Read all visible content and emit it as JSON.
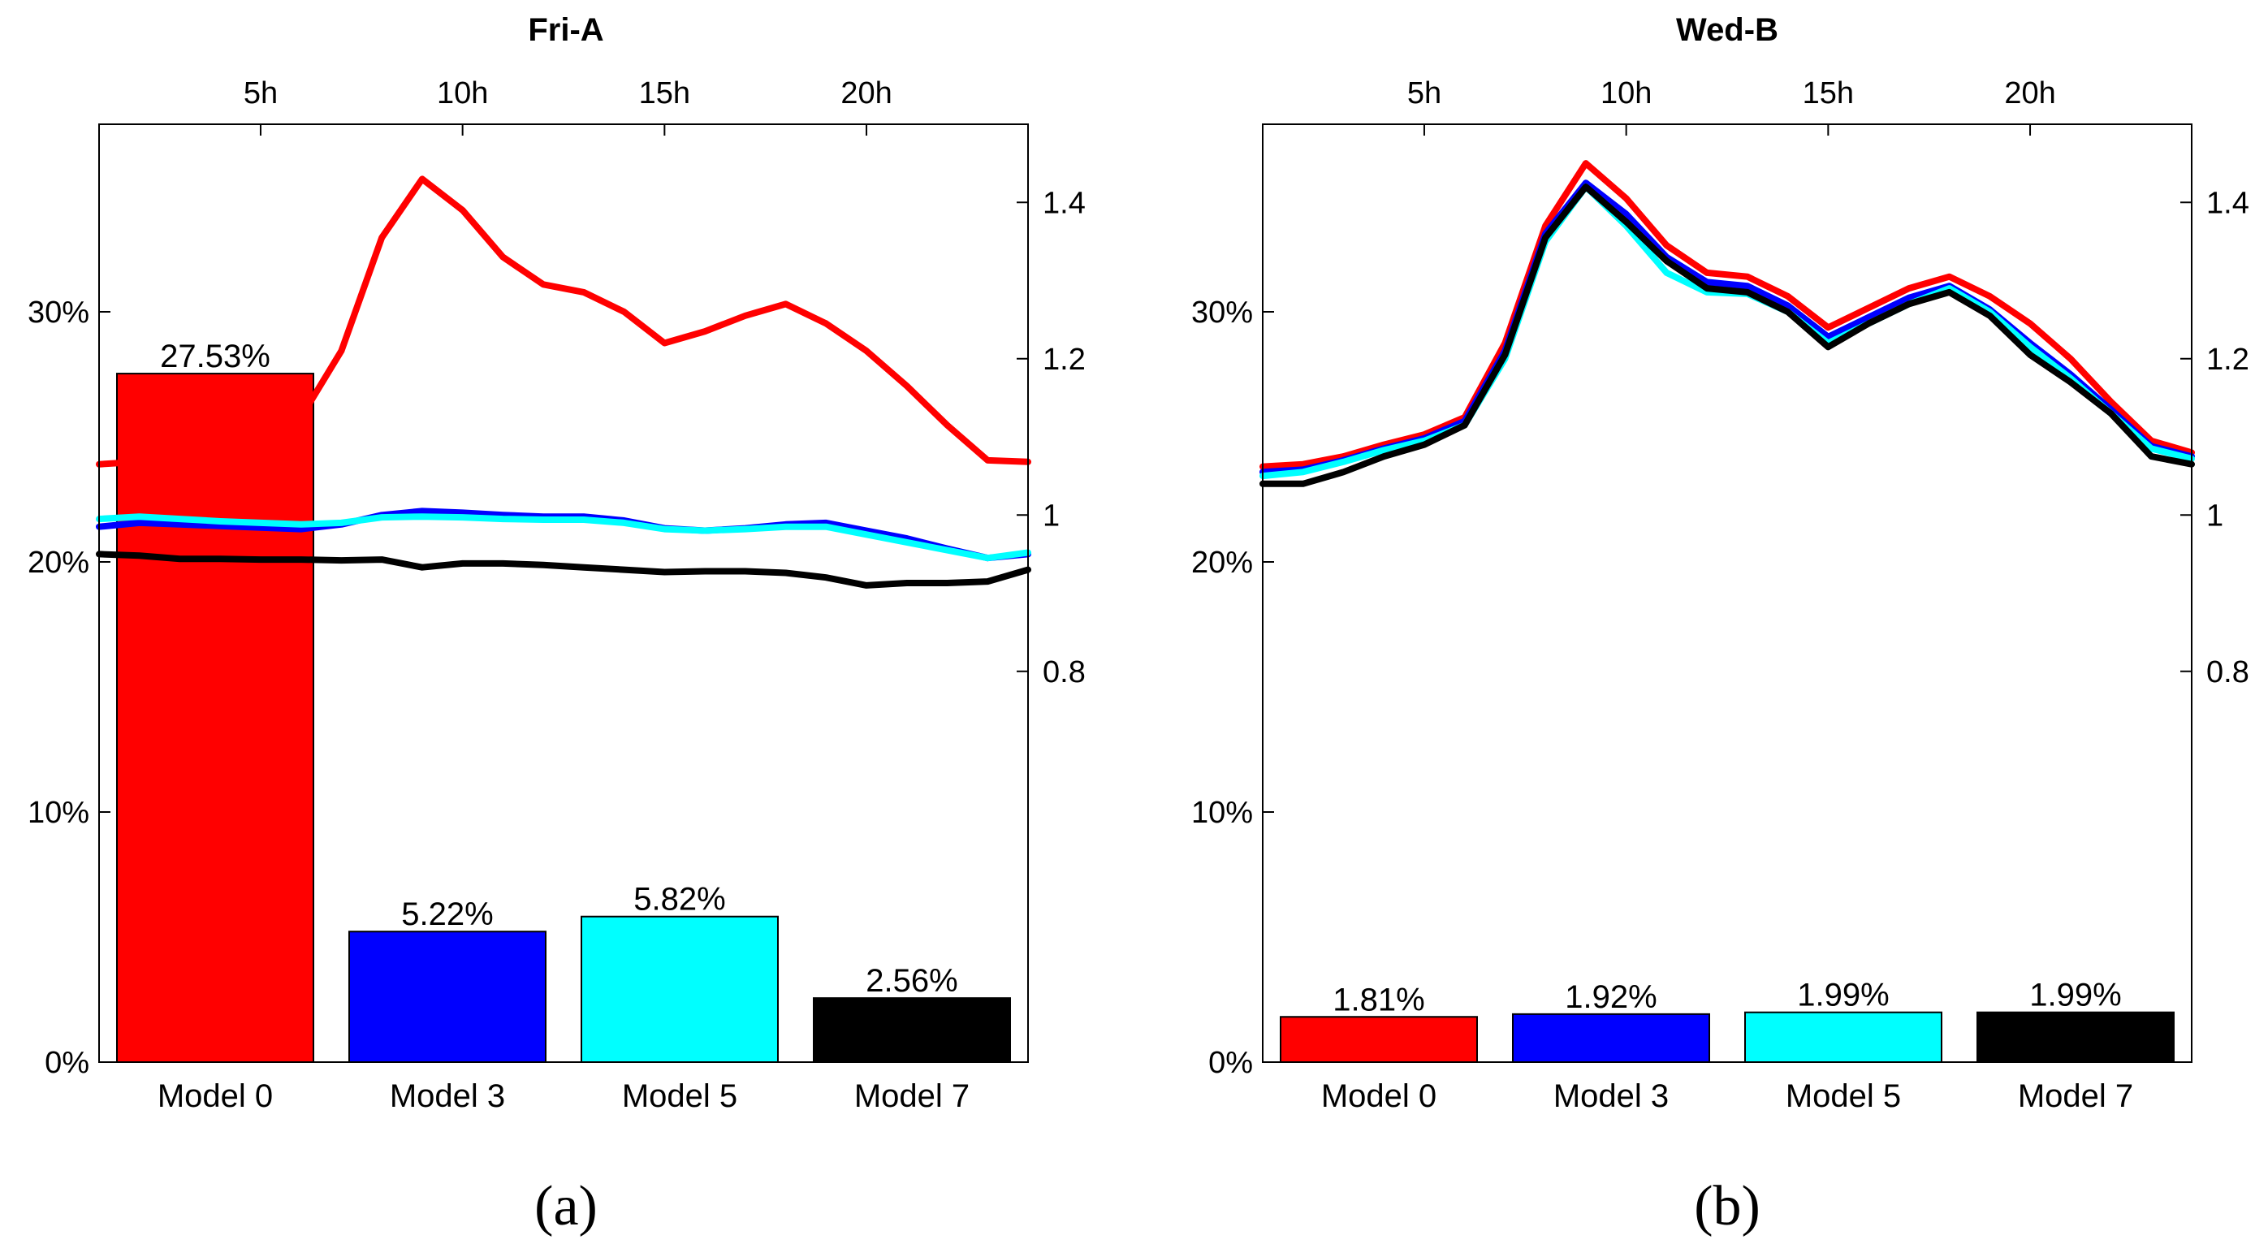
{
  "figure": {
    "captions": [
      "(a)",
      "(b)"
    ]
  },
  "chart_data": [
    {
      "type": "bar",
      "title": "Fri-A",
      "categories": [
        "Model 0",
        "Model 3",
        "Model 5",
        "Model 7"
      ],
      "values": [
        27.53,
        5.22,
        5.82,
        2.56
      ],
      "value_labels": [
        "27.53%",
        "5.22%",
        "5.82%",
        "2.56%"
      ],
      "colors": [
        "#ff0000",
        "#0000ff",
        "#00ffff",
        "#000000"
      ],
      "ylim": [
        0,
        37.5
      ],
      "yticks": [
        0,
        10,
        20,
        30
      ],
      "ytick_labels": [
        "0%",
        "10%",
        "20%",
        "30%"
      ],
      "overlay": {
        "type": "line",
        "xlim": [
          1,
          24
        ],
        "ylim": [
          0.3,
          1.5
        ],
        "x_ticks": [
          5,
          10,
          15,
          20
        ],
        "x_tick_labels": [
          "5h",
          "10h",
          "15h",
          "20h"
        ],
        "y_ticks": [
          0.8,
          1.0,
          1.2,
          1.4
        ],
        "y_tick_labels": [
          "0.8",
          "1",
          "1.2",
          "1.4"
        ],
        "x": [
          1,
          2,
          3,
          4,
          5,
          6,
          7,
          8,
          9,
          10,
          11,
          12,
          13,
          14,
          15,
          16,
          17,
          18,
          19,
          20,
          21,
          22,
          23,
          24
        ],
        "series": [
          {
            "name": "Model 0",
            "color": "#ff0000",
            "values": [
              1.065,
              1.068,
              1.078,
              1.092,
              1.103,
              1.125,
              1.21,
              1.355,
              1.43,
              1.39,
              1.33,
              1.295,
              1.285,
              1.26,
              1.22,
              1.235,
              1.255,
              1.27,
              1.245,
              1.21,
              1.165,
              1.115,
              1.07,
              1.068
            ]
          },
          {
            "name": "Model 3",
            "color": "#0000ff",
            "values": [
              0.985,
              0.99,
              0.988,
              0.986,
              0.984,
              0.982,
              0.988,
              1.0,
              1.005,
              1.003,
              1.0,
              0.998,
              0.998,
              0.993,
              0.983,
              0.98,
              0.983,
              0.988,
              0.99,
              0.98,
              0.97,
              0.957,
              0.945,
              0.95
            ]
          },
          {
            "name": "Model 5",
            "color": "#00ffff",
            "values": [
              0.995,
              0.998,
              0.995,
              0.992,
              0.99,
              0.988,
              0.99,
              0.997,
              0.998,
              0.997,
              0.995,
              0.994,
              0.994,
              0.99,
              0.982,
              0.98,
              0.982,
              0.985,
              0.985,
              0.975,
              0.965,
              0.955,
              0.945,
              0.952
            ]
          },
          {
            "name": "Model 7",
            "color": "#000000",
            "values": [
              0.95,
              0.948,
              0.944,
              0.944,
              0.943,
              0.943,
              0.942,
              0.943,
              0.933,
              0.938,
              0.938,
              0.936,
              0.933,
              0.93,
              0.927,
              0.928,
              0.928,
              0.926,
              0.92,
              0.91,
              0.913,
              0.913,
              0.915,
              0.93
            ]
          }
        ]
      }
    },
    {
      "type": "bar",
      "title": "Wed-B",
      "categories": [
        "Model 0",
        "Model 3",
        "Model 5",
        "Model 7"
      ],
      "values": [
        1.81,
        1.92,
        1.99,
        1.99
      ],
      "value_labels": [
        "1.81%",
        "1.92%",
        "1.99%",
        "1.99%"
      ],
      "colors": [
        "#ff0000",
        "#0000ff",
        "#00ffff",
        "#000000"
      ],
      "ylim": [
        0,
        37.5
      ],
      "yticks": [
        0,
        10,
        20,
        30
      ],
      "ytick_labels": [
        "0%",
        "10%",
        "20%",
        "30%"
      ],
      "overlay": {
        "type": "line",
        "xlim": [
          1,
          24
        ],
        "ylim": [
          0.3,
          1.5
        ],
        "x_ticks": [
          5,
          10,
          15,
          20
        ],
        "x_tick_labels": [
          "5h",
          "10h",
          "15h",
          "20h"
        ],
        "y_ticks": [
          0.8,
          1.0,
          1.2,
          1.4
        ],
        "y_tick_labels": [
          "0.8",
          "1",
          "1.2",
          "1.4"
        ],
        "x": [
          1,
          2,
          3,
          4,
          5,
          6,
          7,
          8,
          9,
          10,
          11,
          12,
          13,
          14,
          15,
          16,
          17,
          18,
          19,
          20,
          21,
          22,
          23,
          24
        ],
        "series": [
          {
            "name": "Model 0",
            "color": "#ff0000",
            "values": [
              1.062,
              1.065,
              1.075,
              1.09,
              1.103,
              1.125,
              1.22,
              1.37,
              1.45,
              1.405,
              1.345,
              1.31,
              1.305,
              1.28,
              1.24,
              1.265,
              1.29,
              1.305,
              1.28,
              1.245,
              1.2,
              1.145,
              1.095,
              1.08
            ]
          },
          {
            "name": "Model 3",
            "color": "#0000ff",
            "values": [
              1.055,
              1.058,
              1.07,
              1.085,
              1.098,
              1.12,
              1.21,
              1.36,
              1.425,
              1.385,
              1.33,
              1.298,
              1.293,
              1.268,
              1.228,
              1.253,
              1.278,
              1.293,
              1.263,
              1.22,
              1.18,
              1.135,
              1.088,
              1.075
            ]
          },
          {
            "name": "Model 5",
            "color": "#00ffff",
            "values": [
              1.05,
              1.055,
              1.068,
              1.083,
              1.095,
              1.115,
              1.2,
              1.35,
              1.42,
              1.37,
              1.31,
              1.285,
              1.283,
              1.26,
              1.22,
              1.245,
              1.27,
              1.29,
              1.26,
              1.215,
              1.175,
              1.13,
              1.085,
              1.072
            ]
          },
          {
            "name": "Model 7",
            "color": "#000000",
            "values": [
              1.04,
              1.04,
              1.055,
              1.075,
              1.09,
              1.115,
              1.205,
              1.355,
              1.42,
              1.375,
              1.325,
              1.29,
              1.285,
              1.26,
              1.215,
              1.245,
              1.27,
              1.285,
              1.255,
              1.205,
              1.17,
              1.13,
              1.075,
              1.065
            ]
          }
        ]
      }
    }
  ]
}
